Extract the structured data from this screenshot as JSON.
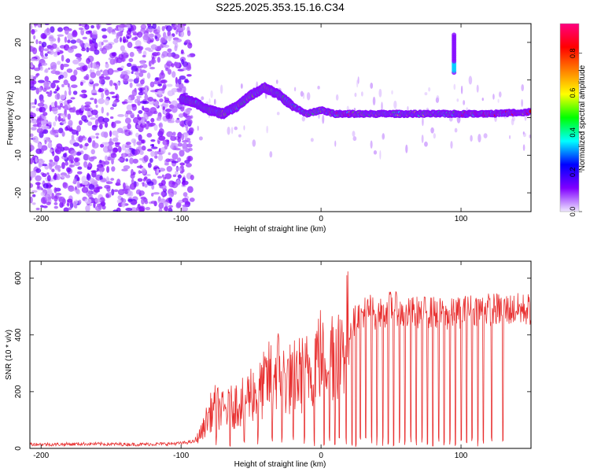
{
  "title": "S225.2025.353.15.16.C34",
  "chart_data": [
    {
      "type": "heatmap",
      "title": "S225.2025.353.15.16.C34",
      "xlabel": "Height of straight line (km)",
      "ylabel": "Frequency (Hz)",
      "xlim": [
        -208,
        150
      ],
      "ylim": [
        -25,
        25
      ],
      "xticks": [
        -200,
        -100,
        0,
        100
      ],
      "xtick_labels": [
        "-200",
        "-100",
        "0",
        "100"
      ],
      "yticks": [
        -20,
        -10,
        0,
        10,
        20
      ],
      "ytick_labels": [
        "-20",
        "-10",
        "0",
        "10",
        "20"
      ],
      "noise_region_x": [
        -208,
        -92
      ],
      "signal_ridge": {
        "x": [
          -100,
          -90,
          -80,
          -70,
          -60,
          -50,
          -40,
          -35,
          -30,
          -20,
          -10,
          0,
          10,
          20,
          40,
          60,
          80,
          100,
          120,
          150
        ],
        "frequency": [
          5,
          4,
          2,
          1,
          3,
          6,
          8,
          7,
          6,
          3,
          1,
          2,
          1,
          1,
          1,
          1,
          1,
          1,
          1,
          1.5
        ]
      },
      "isolated_feature": {
        "x": 95,
        "frequency_range": [
          12,
          22
        ]
      },
      "colorbar": {
        "label": "Normalized spectral amplitude",
        "range": [
          0.0,
          0.95
        ],
        "ticks": [
          0.0,
          0.2,
          0.4,
          0.6,
          0.8
        ],
        "tick_labels": [
          "0.0",
          "0.2",
          "0.4",
          "0.6",
          "0.8"
        ],
        "colors": [
          "#f0e8ff",
          "#8000ff",
          "#0000ff",
          "#00ffff",
          "#00ff00",
          "#ffff00",
          "#ff8000",
          "#ff0000",
          "#ff0080"
        ]
      }
    },
    {
      "type": "line",
      "xlabel": "Height of straight line (km)",
      "ylabel": "SNR (10 * v/v)",
      "xlim": [
        -208,
        150
      ],
      "ylim": [
        0,
        660
      ],
      "xticks": [
        -200,
        -100,
        0,
        100
      ],
      "xtick_labels": [
        "-200",
        "-100",
        "0",
        "100"
      ],
      "yticks": [
        0,
        200,
        400,
        600
      ],
      "ytick_labels": [
        "0",
        "200",
        "400",
        "600"
      ],
      "line_color": "#e83030",
      "series": [
        {
          "name": "SNR",
          "x": [
            -208,
            -190,
            -170,
            -150,
            -130,
            -110,
            -100,
            -90,
            -85,
            -80,
            -75,
            -70,
            -65,
            -60,
            -55,
            -50,
            -45,
            -40,
            -35,
            -30,
            -25,
            -20,
            -15,
            -10,
            -5,
            0,
            5,
            10,
            15,
            20,
            25,
            30,
            35,
            40,
            45,
            50,
            55,
            60,
            65,
            70,
            80,
            90,
            100,
            110,
            120,
            130,
            140,
            150
          ],
          "y": [
            15,
            14,
            16,
            15,
            14,
            16,
            18,
            25,
            60,
            120,
            150,
            130,
            140,
            160,
            170,
            200,
            190,
            230,
            260,
            280,
            240,
            250,
            260,
            270,
            320,
            330,
            350,
            360,
            380,
            420,
            460,
            480,
            490,
            470,
            480,
            500,
            490,
            470,
            480,
            480,
            480,
            470,
            480,
            490,
            490,
            490,
            490,
            490
          ]
        }
      ],
      "dropout_x": [
        -75,
        -65,
        -55,
        -45,
        -35,
        -28,
        -20,
        -12,
        -5,
        2,
        6,
        10,
        13,
        18,
        22,
        25,
        28,
        32,
        36,
        40,
        44,
        48,
        52,
        56,
        60,
        64,
        68,
        72,
        76,
        80,
        84,
        88,
        92,
        96,
        100,
        104,
        108,
        112,
        116,
        122,
        130
      ]
    }
  ]
}
